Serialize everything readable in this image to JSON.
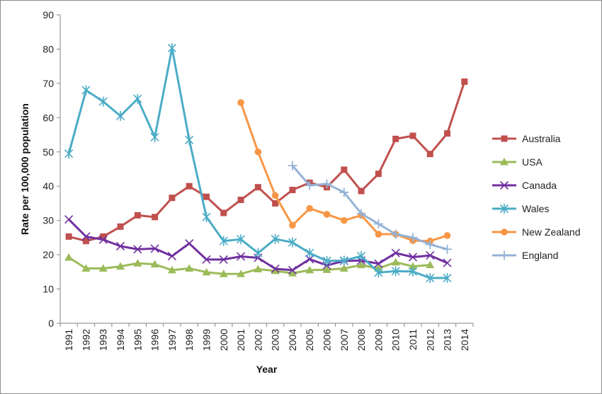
{
  "chart_data": {
    "type": "line",
    "title": "",
    "xlabel": "Year",
    "ylabel": "Rate per 100,000 population",
    "ylim": [
      0,
      90
    ],
    "yticks": [
      0,
      10,
      20,
      30,
      40,
      50,
      60,
      70,
      80,
      90
    ],
    "categories": [
      "1991",
      "1992",
      "1993",
      "1994",
      "1995",
      "1996",
      "1997",
      "1998",
      "1999",
      "2000",
      "2001",
      "2002",
      "2003",
      "2004",
      "2005",
      "2006",
      "2007",
      "2008",
      "2009",
      "2010",
      "2011",
      "2012",
      "2013",
      "2014"
    ],
    "legend_position": "right",
    "grid": false,
    "series": [
      {
        "name": "Australia",
        "color": "#c0504d",
        "marker": "square",
        "values": [
          25.3,
          24.0,
          25.3,
          28.2,
          31.5,
          31.0,
          36.6,
          40.0,
          36.9,
          32.2,
          36.0,
          39.7,
          35.0,
          38.9,
          41.0,
          39.7,
          44.8,
          38.6,
          43.6,
          53.8,
          54.7,
          49.4,
          55.4,
          70.5
        ]
      },
      {
        "name": "USA",
        "color": "#9bbb59",
        "marker": "triangle",
        "values": [
          19.2,
          16.0,
          16.0,
          16.6,
          17.5,
          17.2,
          15.5,
          16.0,
          14.9,
          14.4,
          14.4,
          15.8,
          15.3,
          14.6,
          15.5,
          15.6,
          16.0,
          17.0,
          16.0,
          17.8,
          16.6,
          17.0,
          null,
          null
        ]
      },
      {
        "name": "Canada",
        "color": "#7030a0",
        "marker": "x",
        "values": [
          30.3,
          25.3,
          24.4,
          22.5,
          21.6,
          21.8,
          19.6,
          23.3,
          18.6,
          18.6,
          19.5,
          19.1,
          15.9,
          15.5,
          18.7,
          16.9,
          18.2,
          18.3,
          17.4,
          20.5,
          19.3,
          19.8,
          17.6,
          null
        ]
      },
      {
        "name": "Wales",
        "color": "#4bacc6",
        "marker": "asterisk",
        "values": [
          49.5,
          68.0,
          64.7,
          60.5,
          65.5,
          54.3,
          80.3,
          53.5,
          31.0,
          24.0,
          24.5,
          20.5,
          24.6,
          23.6,
          20.5,
          18.2,
          18.3,
          19.6,
          14.8,
          15.2,
          15.1,
          13.2,
          13.2,
          null
        ]
      },
      {
        "name": "New Zealand",
        "color": "#f79646",
        "marker": "circle",
        "values": [
          null,
          null,
          null,
          null,
          null,
          null,
          null,
          null,
          null,
          null,
          64.4,
          50.0,
          37.3,
          28.6,
          33.5,
          31.8,
          30.0,
          31.5,
          26.0,
          26.0,
          24.1,
          24.0,
          25.6,
          null
        ]
      },
      {
        "name": "England",
        "color": "#95b3d7",
        "marker": "plus",
        "values": [
          null,
          null,
          null,
          null,
          null,
          null,
          null,
          null,
          null,
          null,
          null,
          null,
          null,
          46.0,
          40.2,
          40.7,
          38.2,
          32.0,
          29.0,
          26.0,
          25.0,
          23.0,
          21.6,
          null
        ]
      }
    ]
  }
}
